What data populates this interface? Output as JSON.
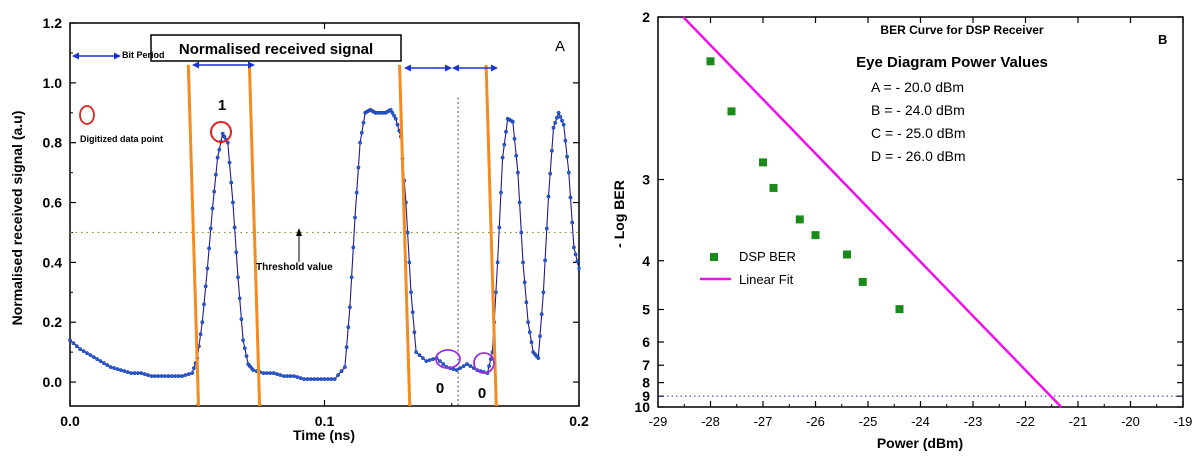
{
  "colors": {
    "signal": "#1e1e8c",
    "marker": "#1f5fd4",
    "orange": "#f58a1f",
    "red": "#e02020",
    "purple": "#9b30e0",
    "arrow": "#1a33d6",
    "threshold": "#8a8a20",
    "ber_point": "#1a8a1a",
    "fit": "#ee10ee",
    "dotted_blue": "#2a2aa0"
  },
  "chart_data": [
    {
      "type": "line",
      "title": "Normalised received signal",
      "panel_label": "A",
      "xlabel": "Time (ns)",
      "ylabel": "Normalised received signal (a.u)",
      "xlim": [
        0,
        0.2
      ],
      "ylim": [
        -0.08,
        1.2
      ],
      "x_ticks": [
        "0.0",
        "0.1",
        "0.2"
      ],
      "y_ticks": [
        "0.0",
        "0.2",
        "0.4",
        "0.6",
        "0.8",
        "1.0",
        "1.2"
      ],
      "threshold": 0.5,
      "series": [
        {
          "x": [
            0,
            0.004,
            0.008,
            0.012,
            0.016,
            0.02,
            0.024,
            0.028,
            0.032,
            0.036,
            0.04,
            0.044,
            0.048,
            0.05,
            0.052,
            0.054,
            0.056,
            0.058,
            0.06,
            0.062,
            0.064,
            0.066,
            0.068,
            0.07,
            0.072,
            0.076,
            0.08,
            0.084,
            0.088,
            0.092,
            0.096,
            0.1,
            0.104,
            0.108,
            0.11,
            0.112,
            0.114,
            0.116,
            0.118,
            0.12,
            0.122,
            0.124,
            0.126,
            0.128,
            0.13,
            0.132,
            0.134,
            0.136,
            0.14,
            0.144,
            0.148,
            0.152,
            0.156,
            0.16,
            0.164,
            0.166,
            0.168,
            0.17,
            0.172,
            0.174,
            0.176,
            0.178,
            0.18,
            0.182,
            0.184,
            0.186,
            0.188,
            0.19,
            0.192,
            0.194,
            0.196,
            0.198,
            0.2
          ],
          "y": [
            0.14,
            0.11,
            0.09,
            0.07,
            0.05,
            0.04,
            0.03,
            0.03,
            0.02,
            0.02,
            0.02,
            0.02,
            0.03,
            0.08,
            0.2,
            0.38,
            0.58,
            0.75,
            0.83,
            0.8,
            0.6,
            0.35,
            0.14,
            0.06,
            0.04,
            0.03,
            0.03,
            0.02,
            0.02,
            0.01,
            0.01,
            0.01,
            0.01,
            0.05,
            0.25,
            0.55,
            0.8,
            0.9,
            0.91,
            0.9,
            0.9,
            0.9,
            0.91,
            0.88,
            0.82,
            0.6,
            0.3,
            0.1,
            0.07,
            0.08,
            0.05,
            0.04,
            0.06,
            0.04,
            0.03,
            0.1,
            0.4,
            0.75,
            0.88,
            0.87,
            0.7,
            0.4,
            0.2,
            0.1,
            0.08,
            0.3,
            0.62,
            0.85,
            0.9,
            0.86,
            0.7,
            0.45,
            0.38
          ]
        }
      ],
      "annotations": {
        "bit_period": "Bit Period",
        "digitized": "Digitized data point",
        "threshold_label": "Threshold value",
        "one": "1",
        "zero_a": "0",
        "zero_b": "0"
      }
    },
    {
      "type": "scatter",
      "title": "BER Curve for DSP Receiver",
      "panel_label": "B",
      "xlabel": "Power (dBm)",
      "ylabel": "- Log BER",
      "xlim": [
        -29,
        -19
      ],
      "y_ticks": [
        "2",
        "3",
        "4",
        "5",
        "6",
        "7",
        "8",
        "9",
        "10"
      ],
      "x_ticks": [
        "-29",
        "-28",
        "-27",
        "-26",
        "-25",
        "-24",
        "-23",
        "-22",
        "-21",
        "-20",
        "-19"
      ],
      "legend": [
        "DSP BER",
        "Linear Fit"
      ],
      "power_heading": "Eye Diagram Power Values",
      "power_values": [
        "A = - 20.0 dBm",
        "B = - 24.0 dBm",
        "C = - 25.0 dBm",
        "D = - 26.0 dBm"
      ],
      "points": [
        {
          "x": -28.0,
          "y": 2.2
        },
        {
          "x": -27.6,
          "y": 2.48
        },
        {
          "x": -27.0,
          "y": 2.85
        },
        {
          "x": -26.8,
          "y": 3.08
        },
        {
          "x": -26.3,
          "y": 3.42
        },
        {
          "x": -26.0,
          "y": 3.62
        },
        {
          "x": -25.4,
          "y": 3.9
        },
        {
          "x": -25.1,
          "y": 4.38
        },
        {
          "x": -24.4,
          "y": 4.99
        }
      ],
      "fit": {
        "x": [
          -28.52,
          -21.32
        ],
        "y": [
          2.0,
          10.0
        ]
      },
      "reference_y": 9
    }
  ]
}
